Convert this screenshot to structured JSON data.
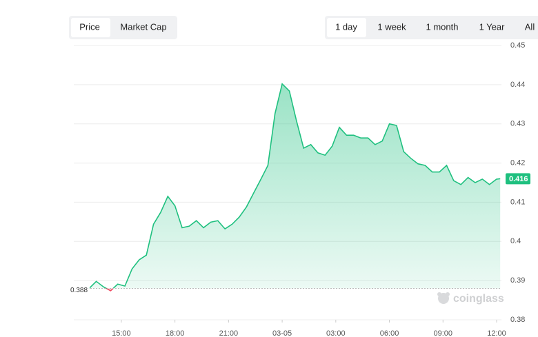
{
  "controls": {
    "metrics": [
      "Price",
      "Market Cap"
    ],
    "metric_selected": 0,
    "ranges": [
      "1 day",
      "1 week",
      "1 month",
      "1 Year",
      "All"
    ],
    "range_selected": 0
  },
  "watermark": "coinglass",
  "chart_data": {
    "type": "baseline-line",
    "x": [
      13.2,
      13.6,
      14.0,
      14.4,
      14.8,
      15.2,
      15.6,
      16.0,
      16.4,
      16.8,
      17.2,
      17.6,
      18.0,
      18.4,
      18.8,
      19.2,
      19.6,
      20.0,
      20.4,
      20.8,
      21.2,
      21.6,
      22.0,
      22.4,
      22.8,
      23.2,
      23.6,
      24.0,
      24.4,
      24.8,
      25.2,
      25.6,
      26.0,
      26.4,
      26.8,
      27.2,
      27.6,
      28.0,
      28.4,
      28.8,
      29.2,
      29.6,
      30.0,
      30.4,
      30.8,
      31.2,
      31.6,
      32.0,
      32.4,
      32.8,
      33.2,
      33.6,
      34.0,
      34.4,
      34.8,
      35.2,
      35.6,
      36.0,
      36.2
    ],
    "series": [
      {
        "name": "Price",
        "color": "#1fc07f",
        "down_color": "#f0475e",
        "values": [
          0.388,
          0.3898,
          0.3884,
          0.3874,
          0.3891,
          0.3886,
          0.393,
          0.3953,
          0.3965,
          0.4044,
          0.4074,
          0.4115,
          0.4091,
          0.4035,
          0.4039,
          0.4053,
          0.4035,
          0.4049,
          0.4053,
          0.4032,
          0.4044,
          0.4062,
          0.4088,
          0.4123,
          0.4158,
          0.4194,
          0.4326,
          0.4402,
          0.4384,
          0.4308,
          0.4238,
          0.4247,
          0.4226,
          0.422,
          0.4243,
          0.4291,
          0.4271,
          0.4271,
          0.4264,
          0.4264,
          0.4247,
          0.4256,
          0.43,
          0.4296,
          0.4229,
          0.4212,
          0.4198,
          0.4194,
          0.4177,
          0.4177,
          0.4194,
          0.4155,
          0.4145,
          0.4163,
          0.415,
          0.4159,
          0.4145,
          0.4159,
          0.416
        ]
      }
    ],
    "baseline": 0.388,
    "xlim": [
      12.34,
      36.27
    ],
    "xticks": [
      {
        "value": 15,
        "label": "15:00"
      },
      {
        "value": 18,
        "label": "18:00"
      },
      {
        "value": 21,
        "label": "21:00"
      },
      {
        "value": 24,
        "label": "03-05"
      },
      {
        "value": 27,
        "label": "03:00"
      },
      {
        "value": 30,
        "label": "06:00"
      },
      {
        "value": 33,
        "label": "09:00"
      },
      {
        "value": 36,
        "label": "12:00"
      }
    ],
    "ylim": [
      0.38,
      0.45
    ],
    "yticks": [
      0.38,
      0.39,
      0.4,
      0.41,
      0.42,
      0.43,
      0.44,
      0.45
    ],
    "grid": true
  }
}
